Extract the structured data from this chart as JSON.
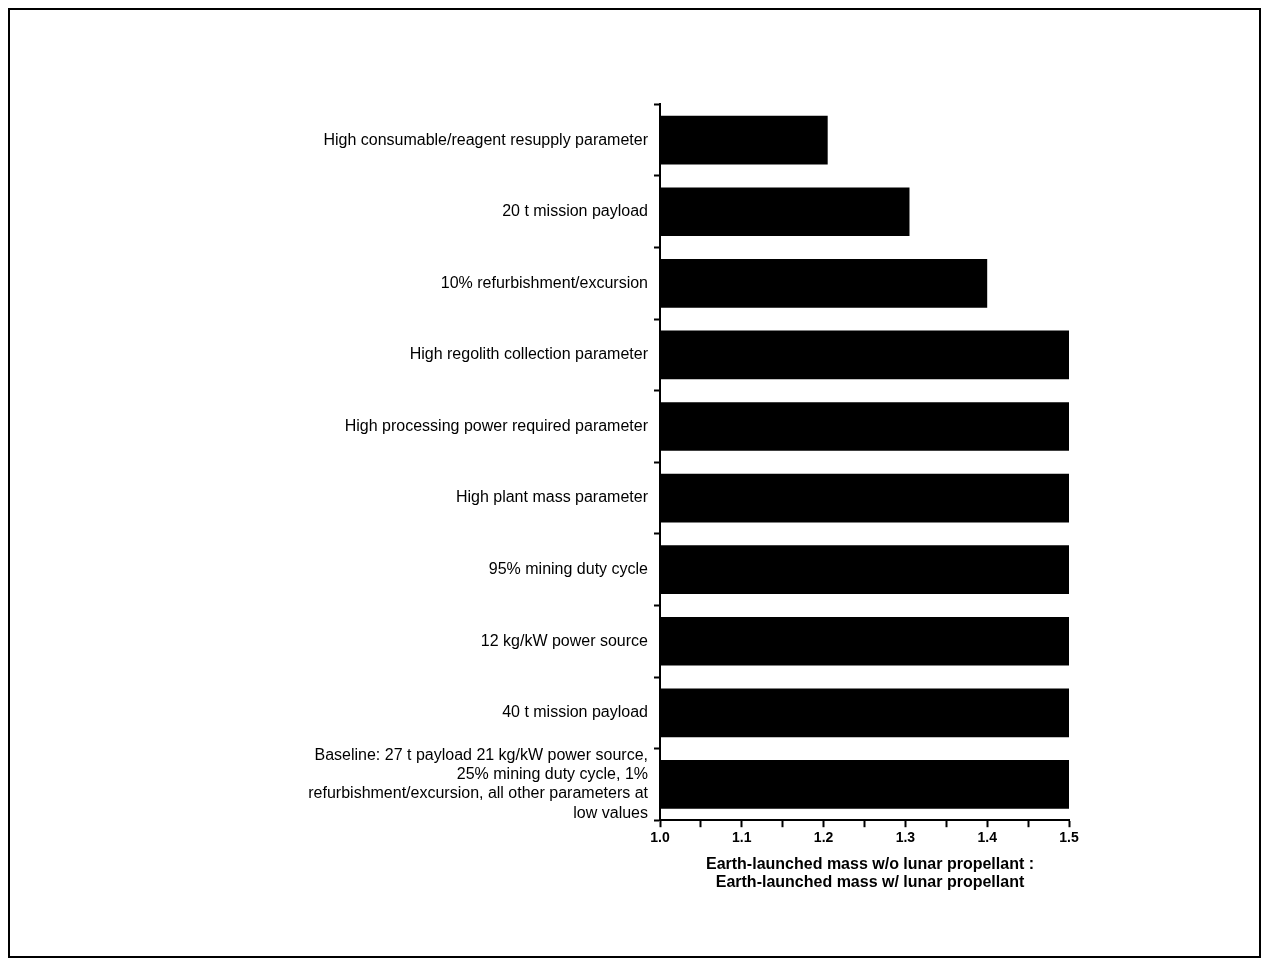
{
  "chart_data": {
    "type": "bar",
    "orientation": "horizontal",
    "xlabel": "Earth-launched mass w/o lunar propellant : Earth-launched mass w/ lunar propellant",
    "categories": [
      "High consumable/reagent resupply parameter",
      "20 t mission payload",
      "10% refurbishment/excursion",
      "High regolith collection parameter",
      "High processing power required parameter",
      "High plant mass parameter",
      "95% mining duty cycle",
      "12 kg/kW power source",
      "40 t mission payload",
      "Baseline: 27 t payload 21 kg/kW power source, 25% mining duty cycle, 1% refurbishment/excursion, all other parameters at low values"
    ],
    "values": [
      1.205,
      1.305,
      1.4,
      1.5,
      1.5,
      1.5,
      1.5,
      1.5,
      1.5,
      1.5
    ],
    "color": "#000000",
    "xlim": [
      1.0,
      1.5
    ],
    "xticks": [
      {
        "value": 1.0,
        "label": "1.0"
      },
      {
        "value": 1.05,
        "label": null
      },
      1.1,
      {
        "value": 1.15,
        "label": null
      },
      1.2,
      {
        "value": 1.25,
        "label": null
      },
      1.3,
      {
        "value": 1.35,
        "label": null
      },
      1.4,
      {
        "value": 1.45,
        "label": null
      },
      1.5
    ],
    "grid": false,
    "legend": false
  }
}
